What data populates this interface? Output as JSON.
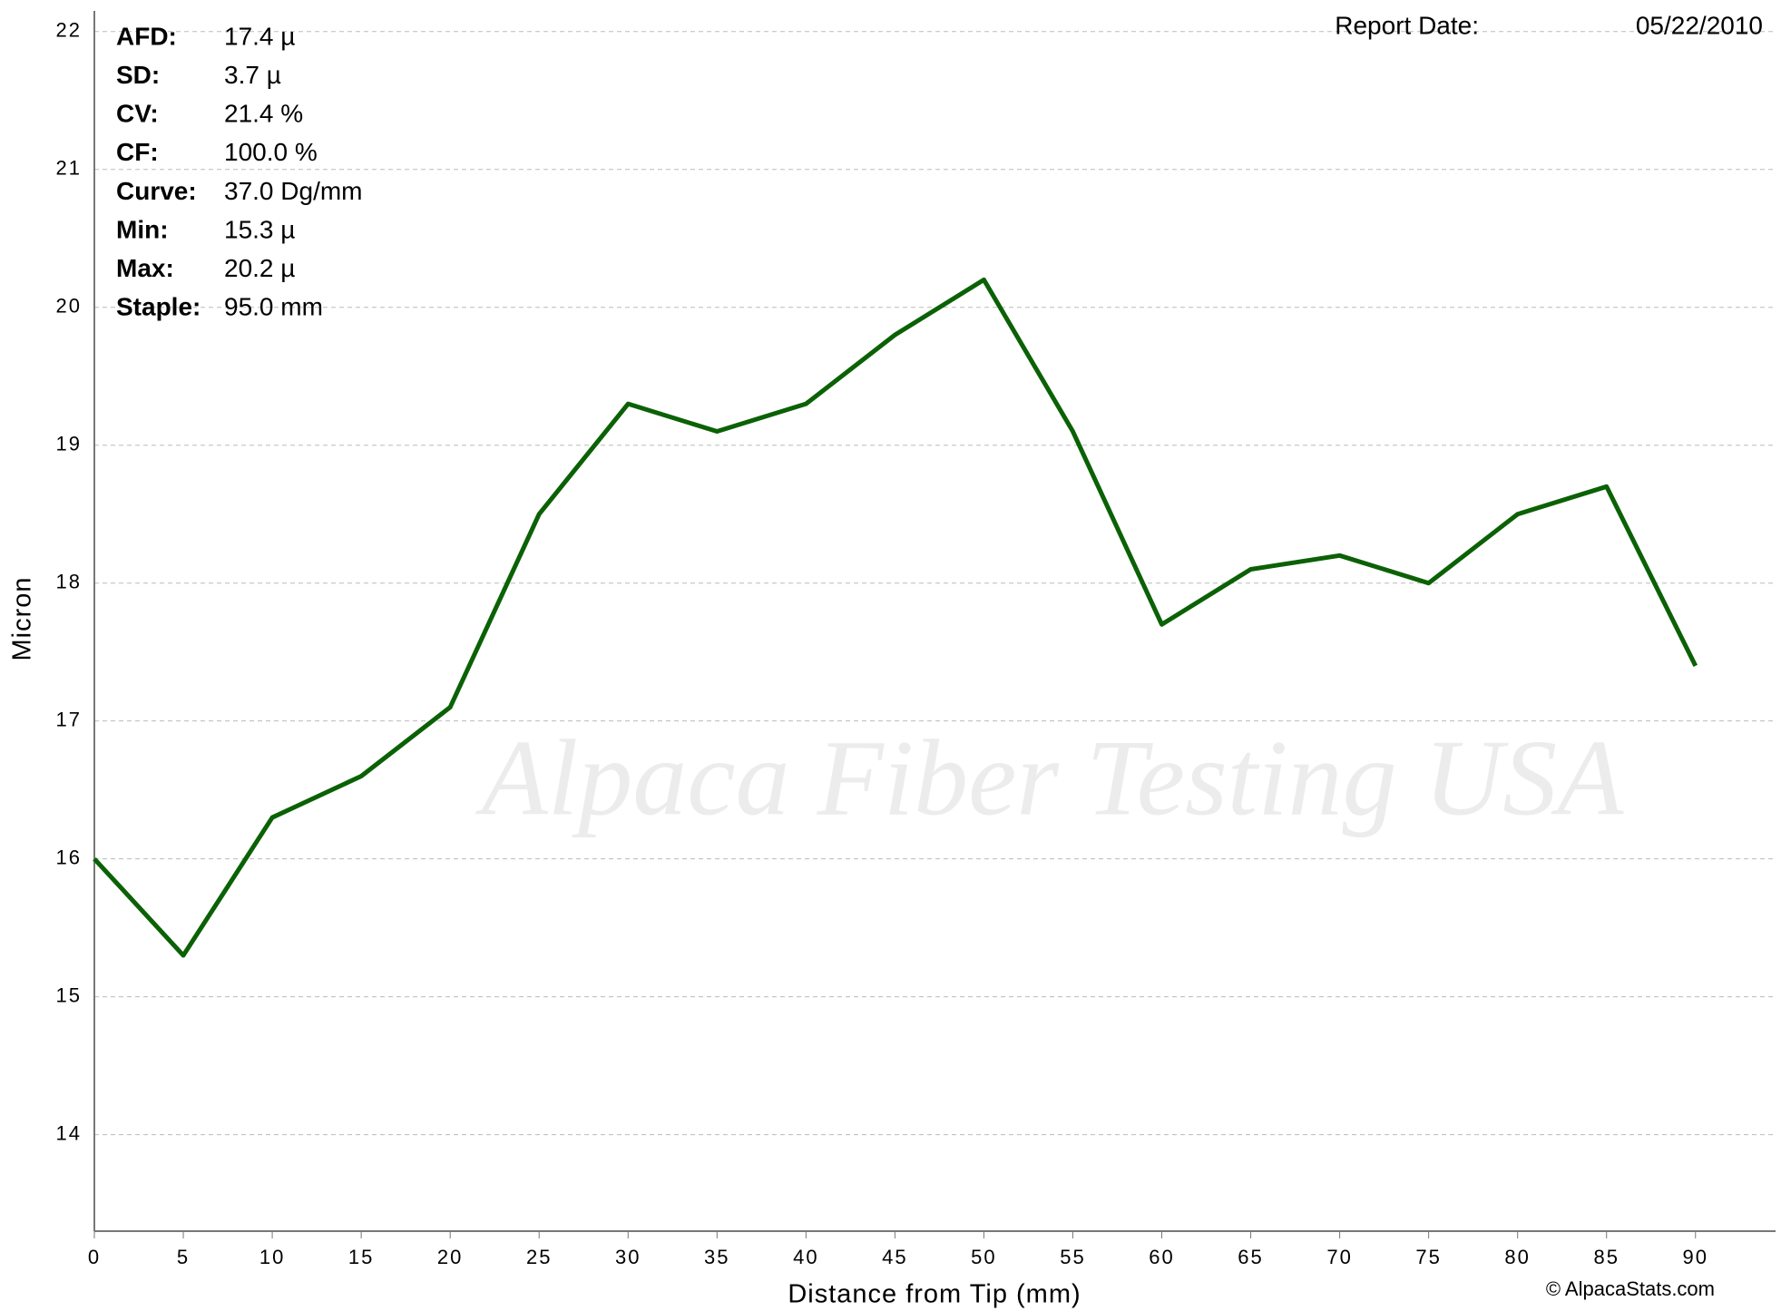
{
  "chart_data": {
    "type": "line",
    "x": [
      0,
      5,
      10,
      15,
      20,
      25,
      30,
      35,
      40,
      45,
      50,
      55,
      60,
      65,
      70,
      75,
      80,
      85,
      90
    ],
    "series": [
      {
        "name": "Micron",
        "color": "#0b6105",
        "values": [
          16.0,
          15.3,
          16.3,
          16.6,
          17.1,
          18.5,
          19.3,
          19.1,
          19.3,
          19.8,
          20.2,
          19.1,
          17.7,
          18.1,
          18.2,
          18.0,
          18.5,
          18.7,
          17.4
        ]
      }
    ],
    "xlim": [
      0,
      94.5
    ],
    "ylim": [
      13.3,
      22.15
    ],
    "xticks": [
      0,
      5,
      10,
      15,
      20,
      25,
      30,
      35,
      40,
      45,
      50,
      55,
      60,
      65,
      70,
      75,
      80,
      85,
      90
    ],
    "yticks": [
      14,
      15,
      16,
      17,
      18,
      19,
      20,
      21,
      22
    ],
    "xlabel": "Distance from Tip (mm)",
    "ylabel": "Micron",
    "grid": true,
    "watermark": "Alpaca Fiber Testing USA",
    "stats": [
      {
        "label": "AFD:",
        "value": "17.4 µ"
      },
      {
        "label": "SD:",
        "value": "3.7 µ"
      },
      {
        "label": "CV:",
        "value": "21.4 %"
      },
      {
        "label": "CF:",
        "value": "100.0 %"
      },
      {
        "label": "Curve:",
        "value": "37.0 Dg/mm"
      },
      {
        "label": "Min:",
        "value": "15.3 µ"
      },
      {
        "label": "Max:",
        "value": "20.2 µ"
      },
      {
        "label": "Staple:",
        "value": "95.0 mm"
      }
    ],
    "report_label": "Report Date:",
    "report_date": "05/22/2010",
    "copyright": "© AlpacaStats.com"
  }
}
